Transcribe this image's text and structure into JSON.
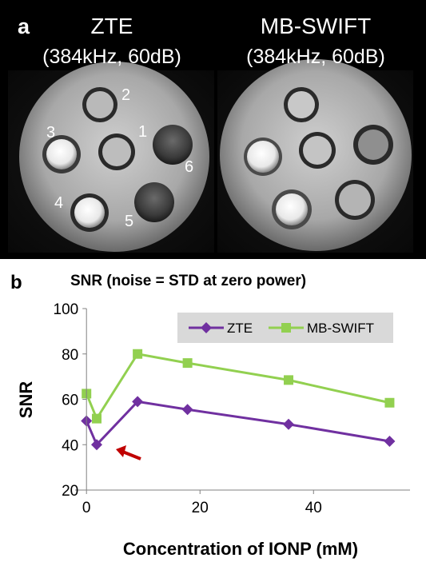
{
  "panel_a": {
    "label": "a",
    "left_title": "ZTE",
    "left_subtitle": "(384kHz, 60dB)",
    "right_title": "MB-SWIFT",
    "right_subtitle": "(384kHz, 60dB)",
    "vial_labels": [
      "1",
      "2",
      "3",
      "4",
      "5",
      "6"
    ]
  },
  "chart_data": {
    "type": "line",
    "panel_label": "b",
    "title": "SNR (noise = STD at zero power)",
    "xlabel": "Concentration of IONP (mM)",
    "ylabel": "SNR",
    "xlim": [
      -2,
      57
    ],
    "ylim": [
      20,
      100
    ],
    "xticks": [
      0,
      20,
      40
    ],
    "yticks": [
      20,
      40,
      60,
      80,
      100
    ],
    "x": [
      0,
      1.8,
      9,
      17.8,
      35.6,
      53.4
    ],
    "series": [
      {
        "name": "ZTE",
        "color": "#7030a0",
        "marker": "diamond",
        "values": [
          50.5,
          40,
          59,
          55.5,
          49,
          41.5
        ]
      },
      {
        "name": "MB-SWIFT",
        "color": "#92d050",
        "marker": "square",
        "values": [
          62.5,
          51.5,
          80,
          76,
          68.5,
          58.5
        ]
      }
    ],
    "legend_position": "top-right",
    "annotation": {
      "type": "arrow",
      "color": "#c00000"
    }
  }
}
